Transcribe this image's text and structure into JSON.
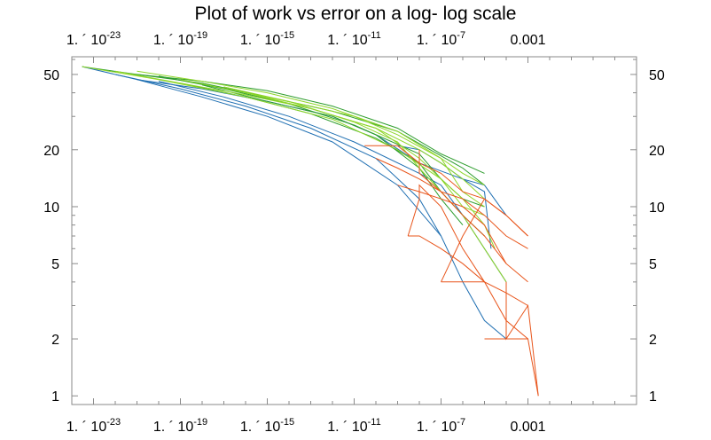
{
  "chart_data": {
    "type": "line",
    "title": "Plot of work vs error on a log- log scale",
    "xlabel": "",
    "ylabel": "",
    "x_scale": "log10",
    "y_scale": "log10",
    "xlim": [
      1e-24,
      100.0
    ],
    "ylim": [
      0.9,
      62
    ],
    "grid": false,
    "frame": "all sides, ticks mirrored on top and right",
    "x_ticks": [
      {
        "value": 1e-23,
        "mantissa": "1. ´ 10",
        "exponent": "-23"
      },
      {
        "value": 1e-19,
        "mantissa": "1. ´ 10",
        "exponent": "-19"
      },
      {
        "value": 1e-15,
        "mantissa": "1. ´ 10",
        "exponent": "-15"
      },
      {
        "value": 1e-11,
        "mantissa": "1. ´ 10",
        "exponent": "-11"
      },
      {
        "value": 1e-07,
        "mantissa": "1. ´ 10",
        "exponent": "-7"
      },
      {
        "value": 0.001,
        "mantissa": "0.001",
        "exponent": ""
      }
    ],
    "y_ticks": [
      {
        "value": 1,
        "label": "1"
      },
      {
        "value": 2,
        "label": "2"
      },
      {
        "value": 5,
        "label": "5"
      },
      {
        "value": 10,
        "label": "10"
      },
      {
        "value": 20,
        "label": "20"
      },
      {
        "value": 50,
        "label": "50"
      }
    ],
    "colors": {
      "blue": "#1f6fb2",
      "green": "#2e9d2e",
      "light_green": "#8fd62a",
      "orange": "#e8541a"
    },
    "series": [
      {
        "color": "blue",
        "points": [
          [
            3e-24,
            55
          ],
          [
            1e-21,
            47
          ],
          [
            1e-18,
            38
          ],
          [
            1e-15,
            30
          ],
          [
            1e-12,
            22
          ],
          [
            1e-09,
            13
          ],
          [
            1e-07,
            7
          ],
          [
            1e-06,
            4
          ],
          [
            1e-05,
            2.5
          ],
          [
            0.0001,
            2
          ]
        ]
      },
      {
        "color": "blue",
        "points": [
          [
            1e-22,
            50
          ],
          [
            1e-19,
            42
          ],
          [
            1e-16,
            34
          ],
          [
            1e-13,
            26
          ],
          [
            1e-10,
            18
          ],
          [
            1e-08,
            11
          ],
          [
            1e-07,
            7
          ]
        ]
      },
      {
        "color": "blue",
        "points": [
          [
            1e-21,
            47
          ],
          [
            1e-18,
            42
          ],
          [
            1e-15,
            36
          ],
          [
            1e-12,
            30
          ],
          [
            1e-10,
            24
          ],
          [
            1e-08,
            17
          ],
          [
            1e-06,
            14
          ],
          [
            1e-05,
            12
          ],
          [
            2e-05,
            6
          ]
        ]
      },
      {
        "color": "blue",
        "points": [
          [
            1e-20,
            46
          ],
          [
            1e-17,
            38
          ],
          [
            1e-14,
            30
          ],
          [
            1e-11,
            22
          ],
          [
            1e-08,
            15
          ],
          [
            1e-07,
            13
          ],
          [
            1e-06,
            9
          ],
          [
            1e-05,
            6
          ],
          [
            0.0001,
            4
          ]
        ]
      },
      {
        "color": "blue",
        "points": [
          [
            1e-09,
            21
          ],
          [
            1e-08,
            20
          ],
          [
            1e-07,
            17
          ],
          [
            1e-06,
            14
          ],
          [
            1e-05,
            13
          ],
          [
            0.0001,
            9
          ]
        ]
      },
      {
        "color": "green",
        "points": [
          [
            3e-24,
            55
          ],
          [
            1e-21,
            50
          ],
          [
            1e-18,
            45
          ],
          [
            1e-15,
            38
          ],
          [
            1e-12,
            32
          ],
          [
            1e-09,
            25
          ],
          [
            1e-06,
            16
          ],
          [
            1e-05,
            13
          ]
        ]
      },
      {
        "color": "green",
        "points": [
          [
            1e-21,
            50
          ],
          [
            1e-18,
            46
          ],
          [
            1e-15,
            41
          ],
          [
            1e-12,
            34
          ],
          [
            1e-09,
            26
          ],
          [
            1e-07,
            19
          ],
          [
            1e-05,
            15
          ]
        ]
      },
      {
        "color": "green",
        "points": [
          [
            1e-20,
            49
          ],
          [
            1e-17,
            42
          ],
          [
            1e-14,
            35
          ],
          [
            1e-11,
            27
          ],
          [
            1e-08,
            19
          ],
          [
            1e-07,
            14
          ],
          [
            1e-06,
            11
          ],
          [
            1e-05,
            10
          ]
        ]
      },
      {
        "color": "green",
        "points": [
          [
            1e-19,
            45
          ],
          [
            1e-16,
            38
          ],
          [
            1e-13,
            31
          ],
          [
            1e-10,
            23
          ],
          [
            1e-08,
            17
          ],
          [
            1e-07,
            12
          ],
          [
            1e-06,
            9
          ],
          [
            1e-05,
            7
          ]
        ]
      },
      {
        "color": "green",
        "points": [
          [
            1e-18,
            44
          ],
          [
            1e-15,
            36
          ],
          [
            1e-12,
            30
          ],
          [
            1e-10,
            24
          ],
          [
            1e-08,
            16
          ],
          [
            1e-07,
            11
          ],
          [
            1e-06,
            8
          ]
        ]
      },
      {
        "color": "light_green",
        "points": [
          [
            3e-24,
            55
          ],
          [
            1e-20,
            47
          ],
          [
            1e-16,
            38
          ],
          [
            1e-12,
            29
          ],
          [
            1e-09,
            20
          ],
          [
            1e-07,
            14
          ],
          [
            1e-06,
            11
          ],
          [
            1e-05,
            8
          ],
          [
            3e-05,
            6
          ]
        ]
      },
      {
        "color": "light_green",
        "points": [
          [
            1e-22,
            52
          ],
          [
            1e-19,
            45
          ],
          [
            1e-16,
            39
          ],
          [
            1e-13,
            33
          ],
          [
            1e-10,
            26
          ],
          [
            1e-08,
            20
          ],
          [
            1e-07,
            17
          ],
          [
            1e-06,
            14
          ],
          [
            1e-05,
            11
          ]
        ]
      },
      {
        "color": "light_green",
        "points": [
          [
            1e-21,
            52
          ],
          [
            1e-18,
            46
          ],
          [
            1e-15,
            40
          ],
          [
            1e-12,
            33
          ],
          [
            1e-09,
            25
          ],
          [
            1e-07,
            18
          ],
          [
            1e-06,
            15
          ],
          [
            1e-05,
            13
          ]
        ]
      },
      {
        "color": "light_green",
        "points": [
          [
            1e-19,
            47
          ],
          [
            1e-16,
            40
          ],
          [
            1e-13,
            33
          ],
          [
            1e-10,
            26
          ],
          [
            1e-08,
            18
          ],
          [
            1e-07,
            14
          ],
          [
            1e-06,
            10
          ],
          [
            1e-05,
            9
          ]
        ]
      },
      {
        "color": "light_green",
        "points": [
          [
            1e-17,
            43
          ],
          [
            1e-14,
            36
          ],
          [
            1e-11,
            28
          ],
          [
            1e-09,
            22
          ],
          [
            1e-08,
            16
          ],
          [
            1e-07,
            12
          ],
          [
            1e-06,
            9
          ],
          [
            1e-05,
            6
          ],
          [
            0.0001,
            4
          ]
        ]
      },
      {
        "color": "light_green",
        "points": [
          [
            1e-16,
            40
          ],
          [
            1e-13,
            34
          ],
          [
            1e-11,
            30
          ],
          [
            1e-09,
            24
          ],
          [
            1e-07,
            18
          ],
          [
            1e-06,
            12
          ],
          [
            1e-05,
            10
          ]
        ]
      },
      {
        "color": "orange",
        "points": [
          [
            3e-11,
            21
          ],
          [
            1e-09,
            21
          ],
          [
            1e-08,
            17
          ],
          [
            1e-07,
            15
          ],
          [
            1e-06,
            12
          ],
          [
            1e-05,
            11
          ],
          [
            0.0001,
            9
          ],
          [
            0.001,
            7
          ]
        ]
      },
      {
        "color": "orange",
        "points": [
          [
            1e-10,
            18
          ],
          [
            1e-09,
            16
          ],
          [
            1e-08,
            14
          ],
          [
            1e-07,
            12
          ],
          [
            1e-06,
            11
          ],
          [
            1e-05,
            9
          ],
          [
            0.0001,
            7
          ],
          [
            0.001,
            6
          ]
        ]
      },
      {
        "color": "orange",
        "points": [
          [
            1e-09,
            13
          ],
          [
            1e-08,
            12
          ],
          [
            1e-07,
            11
          ],
          [
            1e-06,
            10
          ],
          [
            1e-05,
            8
          ],
          [
            0.0001,
            5
          ],
          [
            0.001,
            4
          ]
        ]
      },
      {
        "color": "orange",
        "points": [
          [
            3e-09,
            7
          ],
          [
            1e-08,
            7
          ],
          [
            1e-07,
            6
          ],
          [
            1e-06,
            5
          ],
          [
            1e-05,
            4
          ],
          [
            0.0001,
            3.5
          ],
          [
            0.001,
            3
          ]
        ]
      },
      {
        "color": "orange",
        "points": [
          [
            1e-07,
            4
          ],
          [
            1e-06,
            4
          ],
          [
            1e-05,
            4
          ],
          [
            0.0001,
            2.5
          ],
          [
            0.001,
            2
          ]
        ]
      },
      {
        "color": "orange",
        "points": [
          [
            3e-09,
            7
          ],
          [
            1e-08,
            11
          ],
          [
            1e-08,
            13
          ],
          [
            1e-07,
            10
          ],
          [
            1e-06,
            6
          ],
          [
            1e-05,
            4
          ]
        ]
      },
      {
        "color": "orange",
        "points": [
          [
            1e-08,
            20
          ],
          [
            1e-08,
            15
          ],
          [
            1e-07,
            12
          ],
          [
            1e-06,
            9
          ],
          [
            1e-05,
            7
          ],
          [
            0.0001,
            5
          ]
        ]
      },
      {
        "color": "orange",
        "points": [
          [
            1e-07,
            4
          ],
          [
            1e-06,
            7
          ],
          [
            1e-05,
            11
          ],
          [
            0.0001,
            9
          ],
          [
            0.001,
            7
          ]
        ]
      },
      {
        "color": "orange",
        "points": [
          [
            1e-05,
            2
          ],
          [
            0.0001,
            2
          ],
          [
            0.001,
            2
          ],
          [
            0.003,
            1
          ]
        ]
      },
      {
        "color": "orange",
        "points": [
          [
            0.0001,
            4
          ],
          [
            0.0001,
            2
          ],
          [
            0.001,
            3
          ],
          [
            0.003,
            1
          ]
        ]
      }
    ]
  }
}
